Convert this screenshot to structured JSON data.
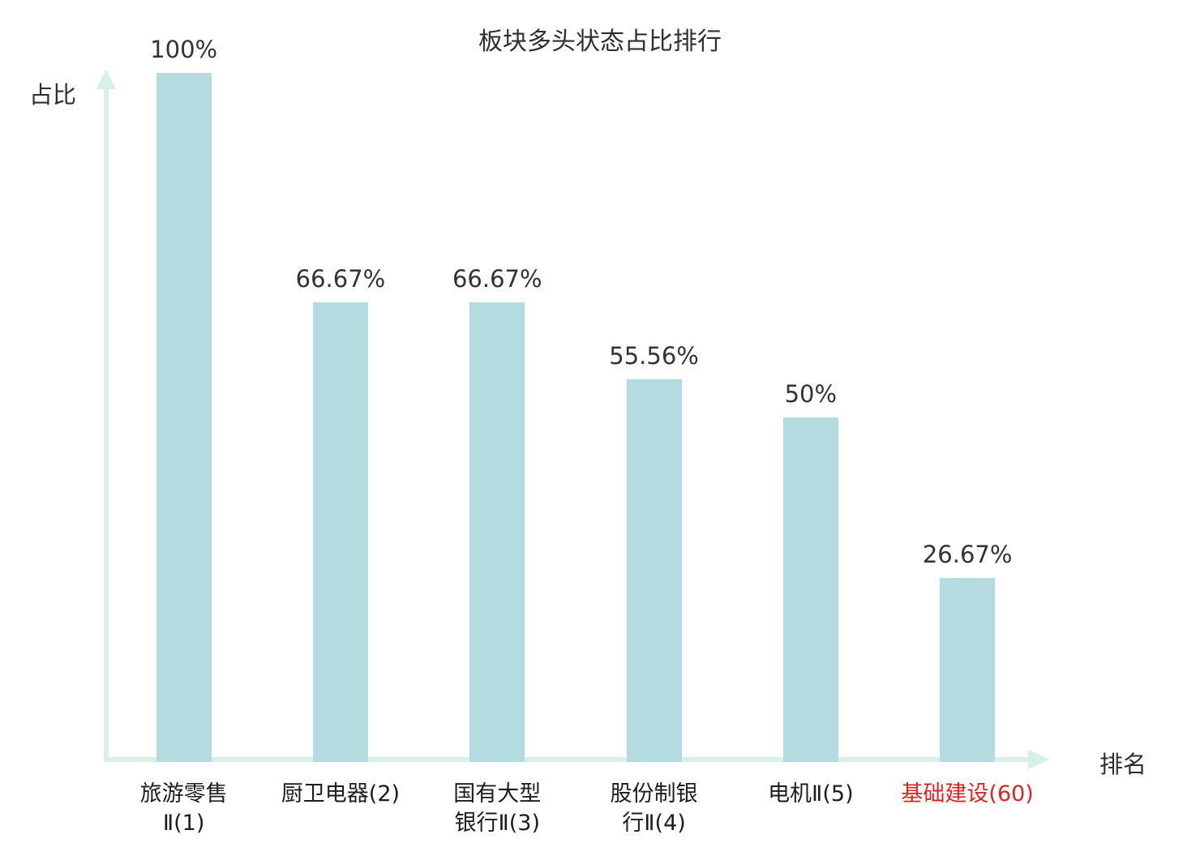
{
  "colors": {
    "bar": "#b4dbe0",
    "axis": "#d9f0e8",
    "text": "#2f2f2f",
    "highlight": "#e02222"
  },
  "chart_data": {
    "type": "bar",
    "title": "板块多头状态占比排行",
    "xlabel": "排名",
    "ylabel": "占比",
    "categories": [
      "旅游零售Ⅱ(1)",
      "厨卫电器(2)",
      "国有大型银行Ⅱ(3)",
      "股份制银行Ⅱ(4)",
      "电机Ⅱ(5)",
      "基础建设(60)"
    ],
    "values": [
      100,
      66.67,
      66.67,
      55.56,
      50,
      26.67
    ],
    "value_labels": [
      "100%",
      "66.67%",
      "66.67%",
      "55.56%",
      "50%",
      "26.67%"
    ],
    "label_lines": [
      [
        "旅游零售",
        "Ⅱ(1)"
      ],
      [
        "厨卫电器(2)"
      ],
      [
        "国有大型",
        "银行Ⅱ(3)"
      ],
      [
        "股份制银",
        "行Ⅱ(4)"
      ],
      [
        "电机Ⅱ(5)"
      ],
      [
        "基础建设(60)"
      ]
    ],
    "highlight_index": 5,
    "ylim": [
      0,
      100
    ],
    "grid": false,
    "legend": "none"
  }
}
